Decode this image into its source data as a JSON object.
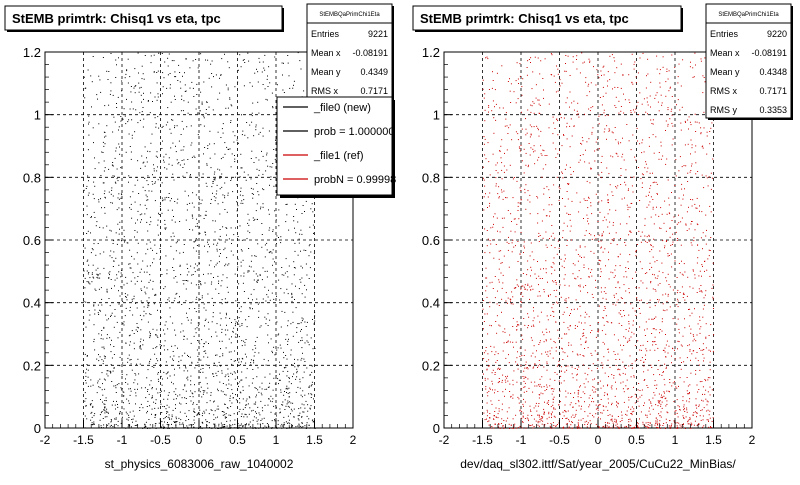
{
  "panels": [
    {
      "title": "StEMB primtrk: Chisq1 vs eta, tpc",
      "stats": {
        "header": "StEMBQaPrimChi1Eta",
        "rows": [
          {
            "label": "Entries",
            "value": "9221"
          },
          {
            "label": "Mean x",
            "value": "-0.08191"
          },
          {
            "label": "Mean y",
            "value": "0.4349"
          },
          {
            "label": "RMS x",
            "value": "0.7171"
          }
        ]
      },
      "legend": [
        {
          "text": "_file0 (new)",
          "color": "#000000"
        },
        {
          "text": "prob = 1.000000",
          "color": "#000000"
        },
        {
          "text": "_file1 (ref)",
          "color": "#cc0000"
        },
        {
          "text": "probN = 0.99998",
          "color": "#cc0000"
        }
      ],
      "caption": "st_physics_6083006_raw_1040002",
      "point_color": "#000000"
    },
    {
      "title": "StEMB primtrk: Chisq1 vs eta, tpc",
      "stats": {
        "header": "StEMBQaPrimChi1Eta",
        "rows": [
          {
            "label": "Entries",
            "value": "9220"
          },
          {
            "label": "Mean x",
            "value": "-0.08191"
          },
          {
            "label": "Mean y",
            "value": "0.4348"
          },
          {
            "label": "RMS x",
            "value": "0.7171"
          },
          {
            "label": "RMS y",
            "value": "0.3353"
          }
        ]
      },
      "legend": [],
      "caption": "dev/daq_sl302.ittf/Sat/year_2005/CuCu22_MinBias/",
      "point_color": "#cc0000"
    }
  ],
  "chart_data": [
    {
      "type": "scatter",
      "title": "StEMB primtrk: Chisq1 vs eta, tpc",
      "xlim": [
        -2,
        2
      ],
      "ylim": [
        0,
        1.2
      ],
      "xticks": [
        "-2",
        "-1.5",
        "-1",
        "-0.5",
        "0",
        "0.5",
        "1",
        "1.5",
        "2"
      ],
      "yticks": [
        "0",
        "0.2",
        "0.4",
        "0.6",
        "0.8",
        "1",
        "1.2"
      ],
      "grid": true,
      "entries": 9221,
      "mean_x": -0.08191,
      "mean_y": 0.4349,
      "rms_x": 0.7171,
      "x_range_of_points": [
        -1.5,
        1.5
      ],
      "color": "#000000"
    },
    {
      "type": "scatter",
      "title": "StEMB primtrk: Chisq1 vs eta, tpc",
      "xlim": [
        -2,
        2
      ],
      "ylim": [
        0,
        1.2
      ],
      "xticks": [
        "-2",
        "-1.5",
        "-1",
        "-0.5",
        "0",
        "0.5",
        "1",
        "1.5",
        "2"
      ],
      "yticks": [
        "0",
        "0.2",
        "0.4",
        "0.6",
        "0.8",
        "1",
        "1.2"
      ],
      "grid": true,
      "entries": 9220,
      "mean_x": -0.08191,
      "mean_y": 0.4348,
      "rms_x": 0.7171,
      "rms_y": 0.3353,
      "x_range_of_points": [
        -1.5,
        1.5
      ],
      "color": "#cc0000"
    }
  ]
}
